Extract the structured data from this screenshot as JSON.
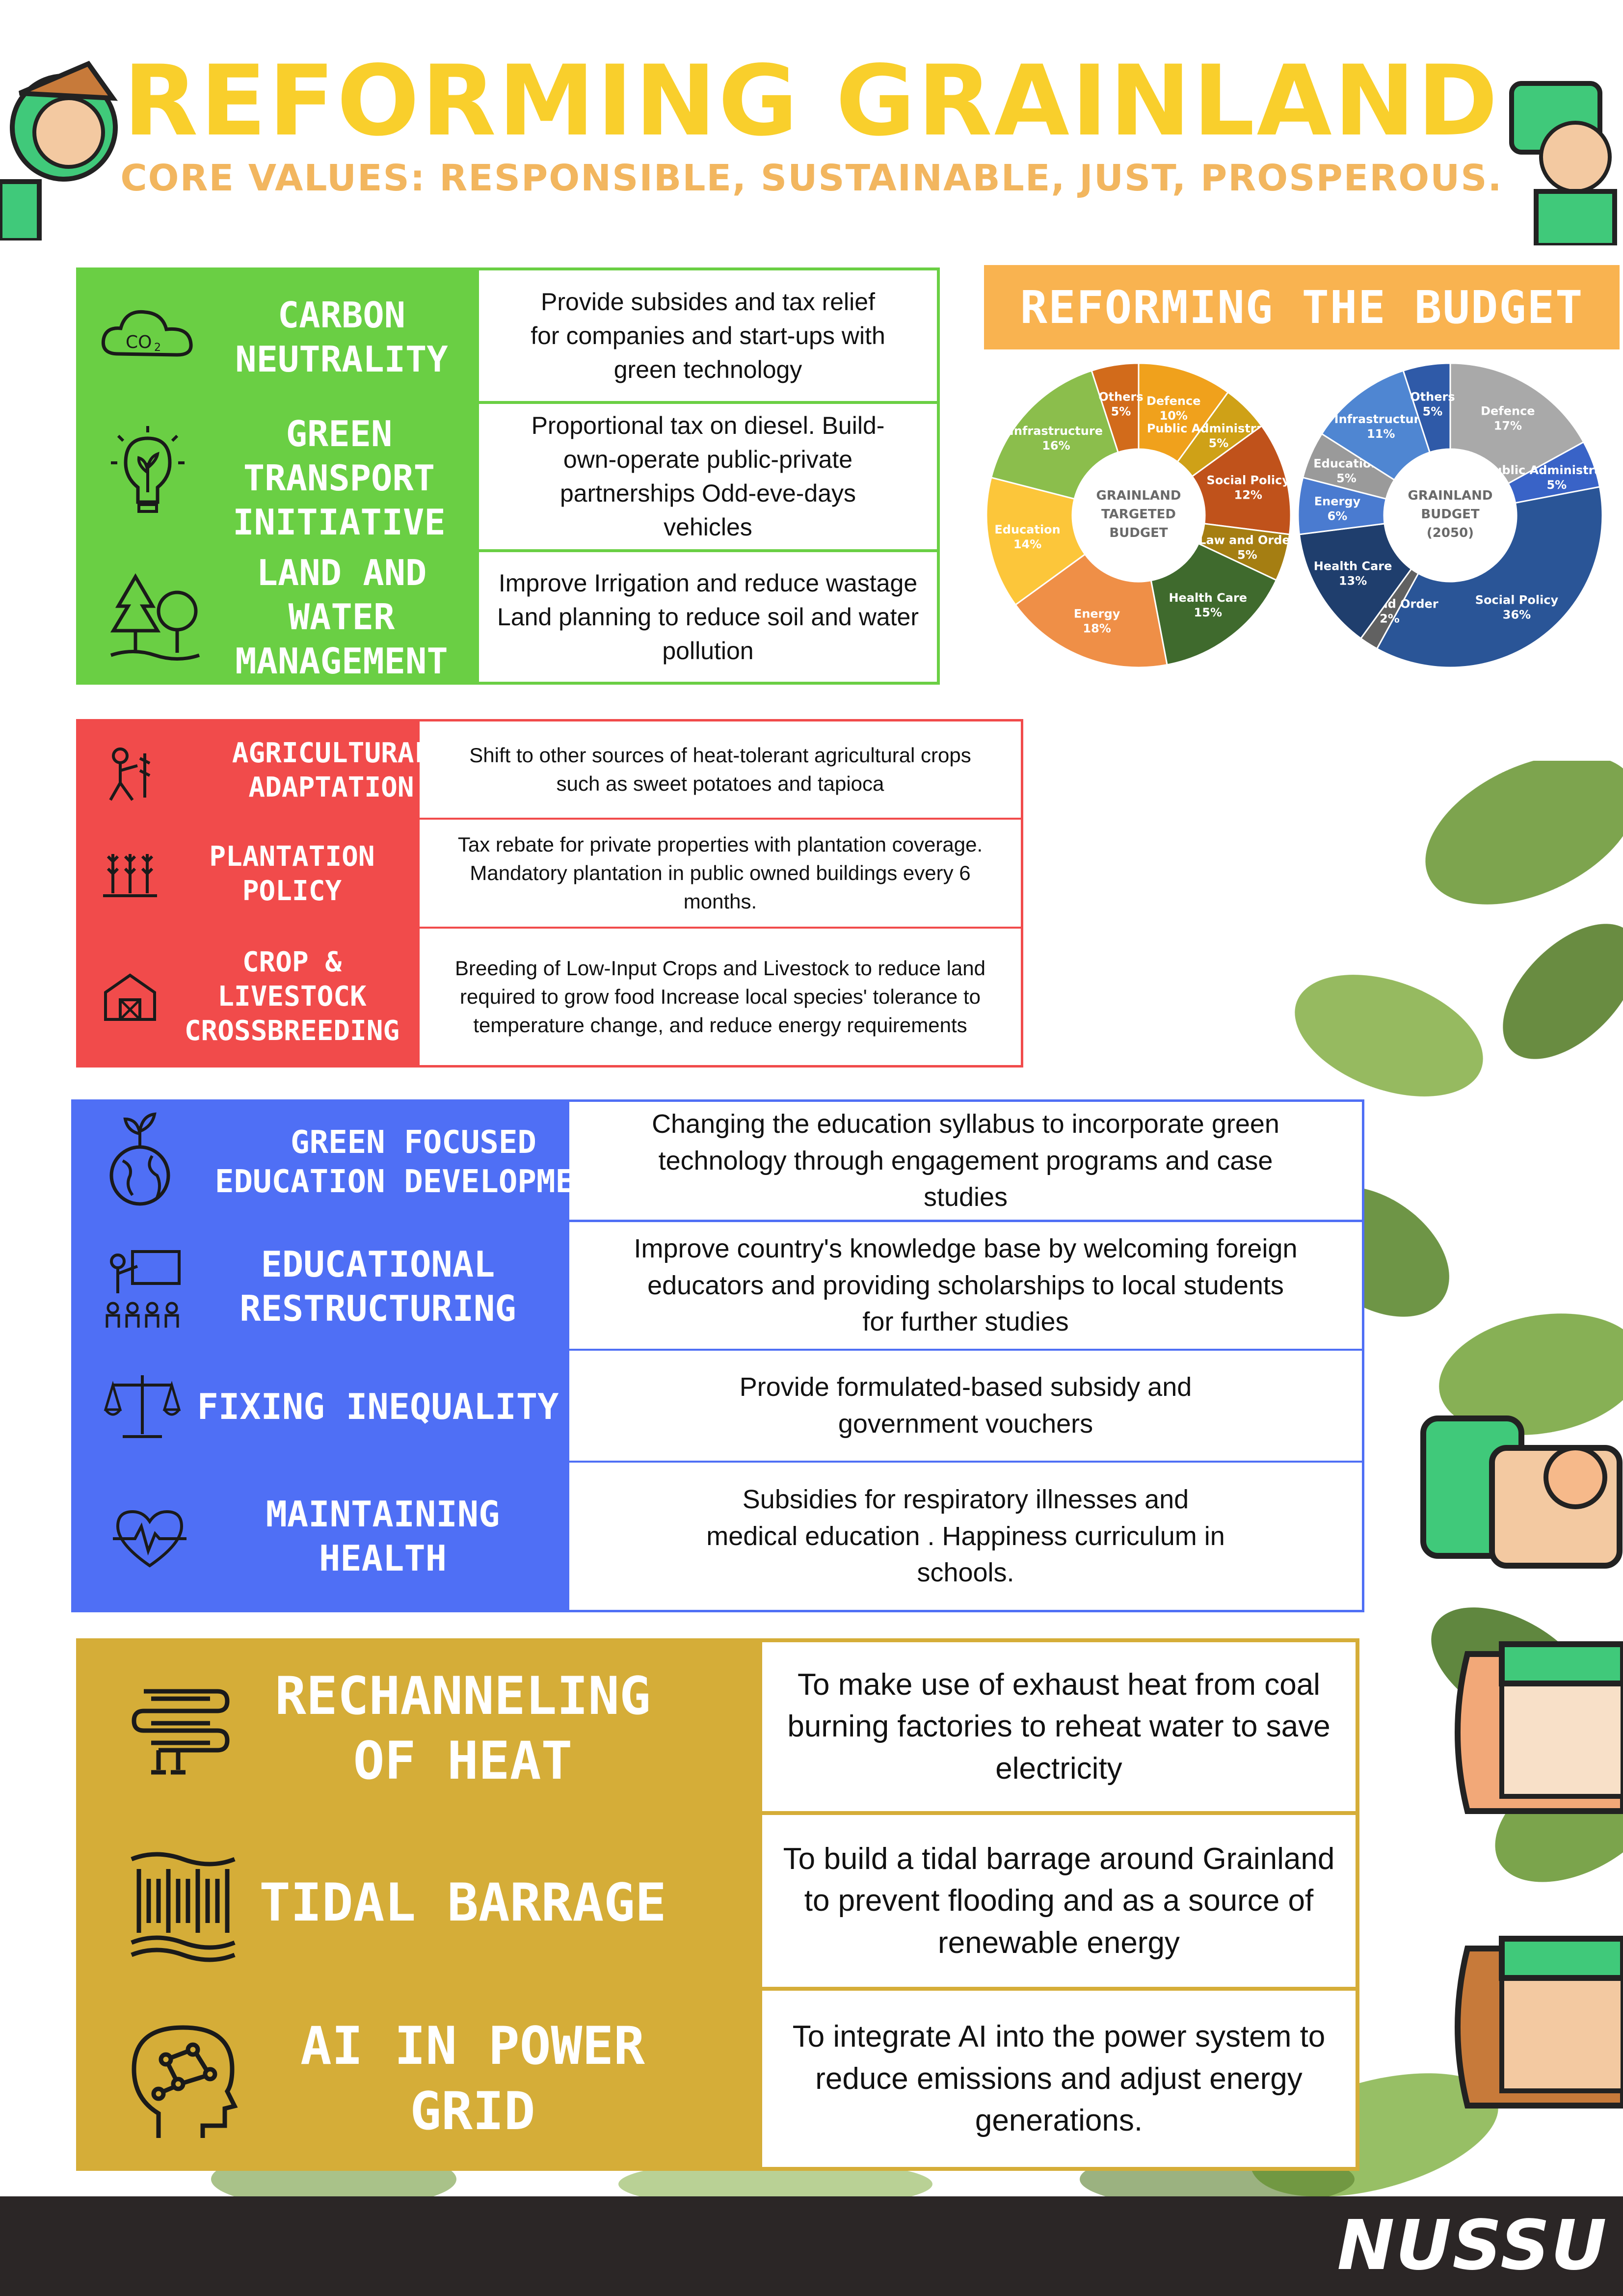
{
  "header": {
    "title": "REFORMING GRAINLAND",
    "subtitle": "CORE VALUES: RESPONSIBLE, SUSTAINABLE, JUST, PROSPEROUS."
  },
  "colors": {
    "green": "#6acf44",
    "red": "#f14b4b",
    "blue": "#4f6ff5",
    "gold": "#d5ad38",
    "title_yellow": "#f9cf2c",
    "budget_orange": "#f9b350"
  },
  "environment": {
    "rows": [
      {
        "label": "CARBON NEUTRALITY",
        "icon": "co2-cloud-icon",
        "desc": "Provide subsides and tax relief for companies and start-ups with green technology"
      },
      {
        "label": "GREEN TRANSPORT INITIATIVE",
        "icon": "eco-lightbulb-icon",
        "desc": "Proportional tax on diesel. Build-own-operate public-private partnerships Odd-eve-days vehicles"
      },
      {
        "label": "LAND AND WATER MANAGEMENT",
        "icon": "trees-icon",
        "desc": "Improve Irrigation and reduce wastage Land planning to reduce soil and water pollution"
      }
    ]
  },
  "agriculture": {
    "rows": [
      {
        "label": "AGRICULTURAL ADAPTATION",
        "icon": "farmer-icon",
        "desc": "Shift to other sources of heat-tolerant agricultural crops such as sweet potatoes and tapioca"
      },
      {
        "label": "PLANTATION POLICY",
        "icon": "crops-icon",
        "desc": "Tax rebate for private properties with plantation coverage. Mandatory plantation in public owned buildings every 6 months."
      },
      {
        "label": "CROP & LIVESTOCK CROSSBREEDING",
        "icon": "barn-icon",
        "desc": "Breeding of Low-Input Crops and Livestock to reduce land required to grow food Increase local species' tolerance to temperature change, and reduce energy requirements"
      }
    ]
  },
  "society": {
    "rows": [
      {
        "label": "GREEN FOCUSED EDUCATION DEVELOPMENT",
        "icon": "globe-sprout-icon",
        "desc": "Changing the education syllabus to incorporate green technology through engagement programs and  case studies"
      },
      {
        "label": "EDUCATIONAL RESTRUCTURING",
        "icon": "classroom-icon",
        "desc": "Improve country's knowledge base by welcoming foreign educators and providing scholarships to local students for further studies"
      },
      {
        "label": "FIXING INEQUALITY",
        "icon": "scales-icon",
        "desc": "Provide formulated-based subsidy and government vouchers"
      },
      {
        "label": "MAINTAINING HEALTH",
        "icon": "heartbeat-icon",
        "desc": "Subsidies for respiratory illnesses and medical education . Happiness curriculum in schools."
      }
    ]
  },
  "energy": {
    "rows": [
      {
        "label": "RECHANNELING OF HEAT",
        "icon": "heat-coil-icon",
        "desc": "To make use of exhaust heat from coal burning factories to reheat water to save electricity"
      },
      {
        "label": "TIDAL BARRAGE",
        "icon": "barrage-icon",
        "desc": "To build a tidal barrage around Grainland to prevent flooding and as a source of renewable energy"
      },
      {
        "label": "AI IN POWER GRID",
        "icon": "ai-brain-icon",
        "desc": "To integrate AI into the power system to reduce emissions and adjust energy generations."
      }
    ]
  },
  "budget": {
    "heading": "REFORMING THE BUDGET",
    "charts_center": [
      "GRAINLAND TARGETED BUDGET",
      "GRAINLAND BUDGET (2050)"
    ]
  },
  "chart_data": [
    {
      "type": "pie",
      "title": "GRAINLAND TARGETED BUDGET",
      "categories": [
        "Defence",
        "Public Administration",
        "Social Policy",
        "Law and Order",
        "Health Care",
        "Energy",
        "Education",
        "Infrastructure",
        "Others"
      ],
      "values": [
        10,
        5,
        12,
        5,
        15,
        18,
        14,
        16,
        5
      ],
      "labels": [
        "10%",
        "5%",
        "12%",
        "5%",
        "15%",
        "18%",
        "14%",
        "16%",
        "5%"
      ],
      "colors": [
        "#f0a11c",
        "#cfa117",
        "#c0521b",
        "#a57e12",
        "#3f6a2d",
        "#ef8f47",
        "#fcc63a",
        "#8bbe4c",
        "#d26b1b"
      ]
    },
    {
      "type": "pie",
      "title": "GRAINLAND BUDGET (2050)",
      "categories": [
        "Defence",
        "Public Administration",
        "Social Policy",
        "Law and Order",
        "Health Care",
        "Energy",
        "Education",
        "Infrastructure",
        "Others"
      ],
      "values": [
        17,
        5,
        36,
        2,
        13,
        6,
        5,
        11,
        5
      ],
      "labels": [
        "17%",
        "5%",
        "36%",
        "2%",
        "13%",
        "6%",
        "5%",
        "11%",
        "5%"
      ],
      "colors": [
        "#a9a9a9",
        "#3963c7",
        "#2a5597",
        "#616161",
        "#1f3e6d",
        "#4a7bd0",
        "#9a9a9a",
        "#4f86d2",
        "#2f5aa8"
      ]
    }
  ],
  "footer": {
    "logo": "NUSSU"
  }
}
